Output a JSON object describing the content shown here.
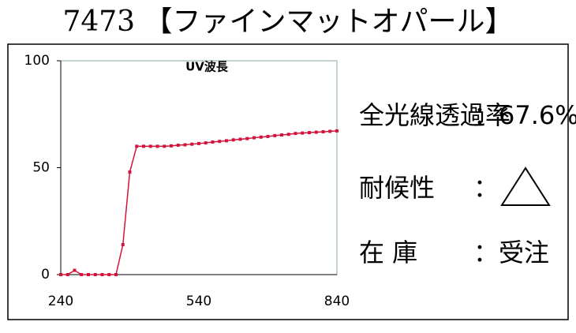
{
  "header": {
    "title": "7473 【ファインマットオパール】"
  },
  "chart_data": {
    "type": "line",
    "title": "UV波長",
    "color": "#d2143c",
    "x": [
      240,
      255,
      270,
      285,
      300,
      315,
      330,
      345,
      360,
      375,
      390,
      405,
      420,
      435,
      450,
      465,
      480,
      495,
      510,
      525,
      540,
      555,
      570,
      585,
      600,
      615,
      630,
      645,
      660,
      675,
      690,
      705,
      720,
      735,
      750,
      765,
      780,
      795,
      810,
      825,
      840
    ],
    "values": [
      0,
      0,
      2,
      0,
      0,
      0,
      0,
      0,
      0,
      14,
      48,
      60,
      60,
      60,
      60,
      60,
      60.2,
      60.5,
      60.7,
      61,
      61.3,
      61.6,
      62,
      62.3,
      62.6,
      63,
      63.3,
      63.6,
      64,
      64.3,
      64.6,
      65,
      65.3,
      65.6,
      66,
      66.2,
      66.4,
      66.6,
      66.8,
      67,
      67.2
    ],
    "xlim": [
      240,
      840
    ],
    "ylim": [
      0,
      100
    ],
    "xticks": [
      240,
      540,
      840
    ],
    "yticks": [
      0,
      50,
      100
    ]
  },
  "info": [
    {
      "label": "全光線透過率",
      "value": "：67.6%"
    },
    {
      "label": "耐候性",
      "value": "："
    },
    {
      "label": "在 庫",
      "value": "：受注"
    }
  ]
}
